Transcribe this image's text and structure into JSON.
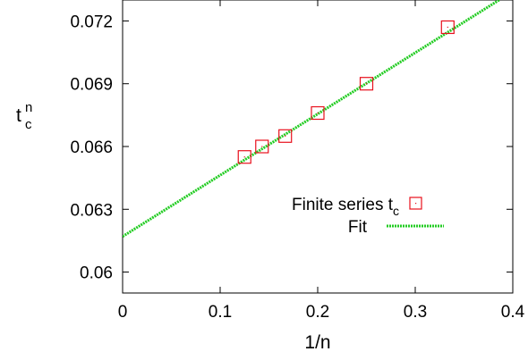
{
  "chart_data": {
    "type": "scatter",
    "xlabel": "1/n",
    "ylabel": {
      "base": "t",
      "sup": "n",
      "sub": "c"
    },
    "xlim": [
      0,
      0.4
    ],
    "ylim": [
      0.059,
      0.073
    ],
    "xticks": [
      0,
      0.1,
      0.2,
      0.3,
      0.4
    ],
    "xtick_labels": [
      "0",
      "0.1",
      "0.2",
      "0.3",
      "0.4"
    ],
    "yticks": [
      0.06,
      0.063,
      0.066,
      0.069,
      0.072
    ],
    "ytick_labels": [
      "0.06",
      "0.063",
      "0.066",
      "0.069",
      "0.072"
    ],
    "grid": false,
    "legend_position": "center-right",
    "series": [
      {
        "name": "Finite series t",
        "name_sub": "c",
        "kind": "markers",
        "marker": "open-square",
        "color": "#e8101c",
        "x": [
          0.125,
          0.1429,
          0.1667,
          0.2,
          0.25,
          0.3333
        ],
        "y": [
          0.0655,
          0.066,
          0.0665,
          0.0676,
          0.069,
          0.0717
        ]
      },
      {
        "name": "Fit",
        "kind": "line",
        "style": "dotted",
        "color": "#22cc22",
        "x": [
          0,
          0.386
        ],
        "y": [
          0.0617,
          0.073
        ]
      }
    ]
  }
}
